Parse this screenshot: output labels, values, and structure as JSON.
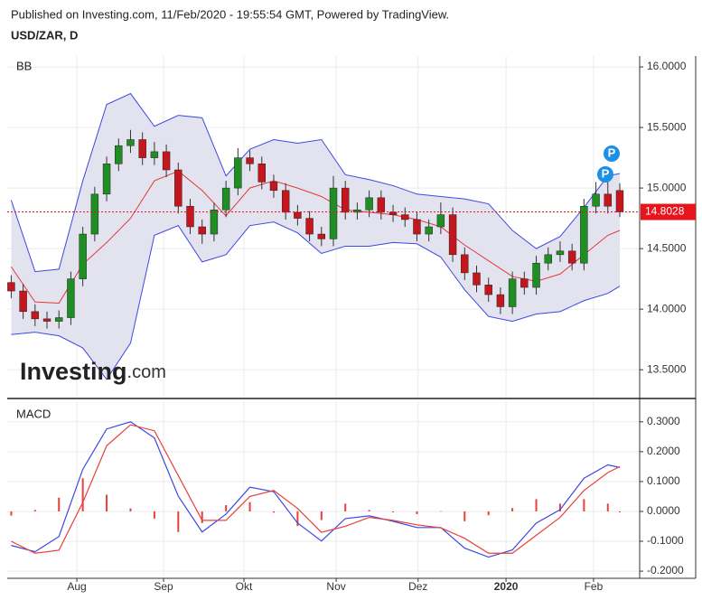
{
  "header": {
    "published": "Published on Investing.com, 11/Feb/2020 - 19:55:54 GMT, Powered by TradingView.",
    "symbol": "USD/ZAR, D"
  },
  "watermark": {
    "brand": "Investing",
    "suffix": ".com"
  },
  "chart_data": [
    {
      "type": "candlestick",
      "title": "BB",
      "x": [
        1,
        4,
        7,
        10,
        13,
        16,
        19,
        22,
        25,
        28,
        31,
        34,
        37,
        40,
        43,
        46,
        49,
        52,
        55,
        58,
        61,
        64,
        67,
        70,
        73,
        76,
        79,
        82,
        85,
        88,
        91,
        94,
        97,
        100,
        103,
        106,
        109,
        112,
        115,
        118,
        121,
        124,
        127,
        130,
        133,
        136,
        139,
        142,
        145,
        148,
        151,
        154
      ],
      "open": [
        14.22,
        14.15,
        13.98,
        13.92,
        13.9,
        13.93,
        14.25,
        14.62,
        14.95,
        15.2,
        15.35,
        15.4,
        15.25,
        15.3,
        15.15,
        14.85,
        14.68,
        14.62,
        14.82,
        15.0,
        15.25,
        15.2,
        15.05,
        14.98,
        14.8,
        14.75,
        14.62,
        14.58,
        15.0,
        14.8,
        14.82,
        14.92,
        14.8,
        14.78,
        14.74,
        14.62,
        14.68,
        14.78,
        14.45,
        14.3,
        14.2,
        14.12,
        14.02,
        14.25,
        14.18,
        14.38,
        14.45,
        14.48,
        14.38,
        14.85,
        14.95,
        14.98
      ],
      "high": [
        14.28,
        14.21,
        14.04,
        13.98,
        13.99,
        14.31,
        14.68,
        15.01,
        15.26,
        15.41,
        15.48,
        15.46,
        15.38,
        15.36,
        15.21,
        14.91,
        14.74,
        14.88,
        15.06,
        15.33,
        15.31,
        15.26,
        15.11,
        15.04,
        14.86,
        14.81,
        14.68,
        15.1,
        15.06,
        14.88,
        14.98,
        14.98,
        14.86,
        14.84,
        14.8,
        14.74,
        14.88,
        14.84,
        14.51,
        14.36,
        14.26,
        14.18,
        14.31,
        14.31,
        14.44,
        14.51,
        14.56,
        14.54,
        14.91,
        15.05,
        15.08,
        15.04
      ],
      "low": [
        14.09,
        13.92,
        13.86,
        13.84,
        13.84,
        13.87,
        14.19,
        14.56,
        14.89,
        15.14,
        15.29,
        15.19,
        15.19,
        15.09,
        14.79,
        14.62,
        14.54,
        14.56,
        14.76,
        14.94,
        15.14,
        14.99,
        14.92,
        14.74,
        14.69,
        14.56,
        14.52,
        14.52,
        14.74,
        14.74,
        14.76,
        14.74,
        14.72,
        14.68,
        14.56,
        14.56,
        14.62,
        14.39,
        14.24,
        14.14,
        14.06,
        13.96,
        13.96,
        14.12,
        14.12,
        14.32,
        14.39,
        14.32,
        14.32,
        14.79,
        14.79,
        14.76
      ],
      "close": [
        14.15,
        13.98,
        13.92,
        13.9,
        13.93,
        14.25,
        14.62,
        14.95,
        15.2,
        15.35,
        15.4,
        15.25,
        15.3,
        15.15,
        14.85,
        14.68,
        14.62,
        14.82,
        15.0,
        15.25,
        15.2,
        15.05,
        14.98,
        14.8,
        14.75,
        14.62,
        14.58,
        15.0,
        14.8,
        14.82,
        14.92,
        14.8,
        14.78,
        14.74,
        14.62,
        14.68,
        14.78,
        14.45,
        14.3,
        14.2,
        14.12,
        14.02,
        14.25,
        14.18,
        14.38,
        14.45,
        14.48,
        14.38,
        14.85,
        14.95,
        14.85,
        14.8028
      ],
      "up_color": "#1f8f24",
      "down_color": "#c4161c",
      "wick_color": "#333333",
      "bands": {
        "x": [
          1,
          7,
          13,
          19,
          25,
          31,
          37,
          43,
          49,
          55,
          61,
          67,
          73,
          79,
          85,
          91,
          97,
          103,
          109,
          115,
          121,
          127,
          133,
          139,
          145,
          151,
          154
        ],
        "upper": [
          14.9,
          14.31,
          14.33,
          15.06,
          15.69,
          15.78,
          15.51,
          15.6,
          15.58,
          15.1,
          15.32,
          15.4,
          15.37,
          15.4,
          15.11,
          15.07,
          15.02,
          14.95,
          14.93,
          14.91,
          14.87,
          14.65,
          14.5,
          14.6,
          14.84,
          15.1,
          15.12
        ],
        "middle": [
          14.35,
          14.06,
          14.05,
          14.37,
          14.55,
          14.75,
          15.06,
          15.14,
          14.98,
          14.77,
          15.0,
          15.06,
          15.0,
          14.93,
          14.82,
          14.8,
          14.78,
          14.74,
          14.68,
          14.53,
          14.4,
          14.27,
          14.23,
          14.29,
          14.45,
          14.61,
          14.65
        ],
        "lower": [
          13.79,
          13.81,
          13.78,
          13.68,
          13.42,
          13.72,
          14.61,
          14.69,
          14.39,
          14.45,
          14.69,
          14.72,
          14.63,
          14.46,
          14.52,
          14.52,
          14.55,
          14.54,
          14.43,
          14.16,
          13.94,
          13.9,
          13.96,
          13.98,
          14.07,
          14.13,
          14.19
        ],
        "band_color": "#3d48e0",
        "middle_color": "#e03a3a",
        "fill_color": "#e3e3f0"
      },
      "last_price_color": "#e8141b",
      "events": [
        "P",
        "P"
      ],
      "event_color": "#1c8fe6",
      "xlim": [
        0,
        159
      ],
      "xticks": [
        {
          "value": 17.5,
          "label": "Aug"
        },
        {
          "value": 39.3,
          "label": "Sep"
        },
        {
          "value": 59.5,
          "label": "Okt"
        },
        {
          "value": 82.7,
          "label": "Nov"
        },
        {
          "value": 103.3,
          "label": "Dez"
        },
        {
          "value": 125.4,
          "label": "2020"
        },
        {
          "value": 147.4,
          "label": "Feb"
        }
      ],
      "ylim": [
        13.27,
        16.09
      ],
      "yticks": [
        {
          "value": 13.5,
          "label": "13.5000"
        },
        {
          "value": 14,
          "label": "14.0000"
        },
        {
          "value": 14.5,
          "label": "14.5000"
        },
        {
          "value": 15,
          "label": "15.0000"
        },
        {
          "value": 15.5,
          "label": "15.5000"
        },
        {
          "value": 16,
          "label": "16.0000"
        }
      ],
      "grid": true
    },
    {
      "type": "macd",
      "title": "MACD",
      "x": [
        1,
        7,
        13,
        19,
        25,
        31,
        37,
        43,
        49,
        55,
        61,
        67,
        73,
        79,
        85,
        91,
        97,
        103,
        109,
        115,
        121,
        127,
        133,
        139,
        145,
        151,
        154
      ],
      "series": [
        {
          "color": "#3d48e0",
          "values": [
            -0.114,
            -0.135,
            -0.084,
            0.141,
            0.276,
            0.3,
            0.246,
            0.051,
            -0.069,
            -0.009,
            0.081,
            0.066,
            -0.039,
            -0.099,
            -0.024,
            -0.015,
            -0.033,
            -0.054,
            -0.054,
            -0.123,
            -0.153,
            -0.129,
            -0.039,
            0.006,
            0.111,
            0.156,
            0.147
          ]
        },
        {
          "color": "#e8403a",
          "values": [
            -0.1,
            -0.14,
            -0.13,
            0.03,
            0.22,
            0.29,
            0.27,
            0.12,
            -0.03,
            -0.03,
            0.05,
            0.07,
            0.01,
            -0.07,
            -0.05,
            -0.02,
            -0.03,
            -0.045,
            -0.055,
            -0.09,
            -0.14,
            -0.14,
            -0.08,
            -0.02,
            0.07,
            0.13,
            0.15
          ]
        }
      ],
      "histogram": {
        "color": "#e8403a",
        "values": [
          -0.014,
          0.005,
          0.046,
          0.111,
          0.056,
          0.01,
          -0.024,
          -0.069,
          -0.039,
          0.021,
          0.031,
          -0.004,
          -0.049,
          -0.029,
          0.026,
          0.005,
          -0.003,
          -0.009,
          0.001,
          -0.033,
          -0.013,
          0.011,
          0.041,
          0.026,
          0.041,
          0.026,
          -0.003
        ]
      },
      "xlim": [
        0,
        159
      ],
      "xticks": [
        {
          "value": 17.5,
          "label": "Aug"
        },
        {
          "value": 39.3,
          "label": "Sep"
        },
        {
          "value": 59.5,
          "label": "Okt"
        },
        {
          "value": 82.7,
          "label": "Nov"
        },
        {
          "value": 103.3,
          "label": "Dez"
        },
        {
          "value": 125.4,
          "label": "2020"
        },
        {
          "value": 147.4,
          "label": "Feb"
        }
      ],
      "ylim": [
        -0.224,
        0.372
      ],
      "yticks": [
        {
          "value": -0.2,
          "label": "-0.2000"
        },
        {
          "value": -0.1,
          "label": "-0.1000"
        },
        {
          "value": 0,
          "label": "0.0000"
        },
        {
          "value": 0.1,
          "label": "0.1000"
        },
        {
          "value": 0.2,
          "label": "0.2000"
        },
        {
          "value": 0.3,
          "label": "0.3000"
        }
      ],
      "grid": true
    }
  ]
}
